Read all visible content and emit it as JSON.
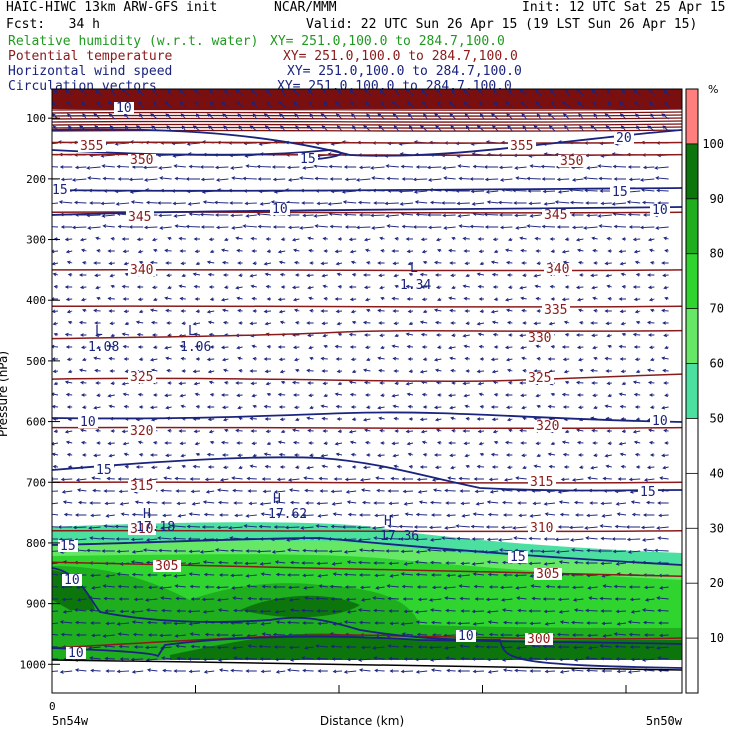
{
  "header": {
    "title": "HAIC-HIWC 13km ARW-GFS init",
    "center": "NCAR/MMM",
    "init": "Init: 12 UTC Sat 25 Apr 15",
    "fcst": "Fcst:   34 h",
    "valid": "Valid: 22 UTC Sun 26 Apr 15 (19 LST Sun 26 Apr 15)",
    "fields": [
      {
        "name": "Relative humidity (w.r.t. water)",
        "xy": "XY= 251.0,100.0 to 284.7,100.0",
        "color": "#1f9a1f"
      },
      {
        "name": "Potential temperature",
        "xy": "XY= 251.0,100.0 to 284.7,100.0",
        "color": "#8b1a1a"
      },
      {
        "name": "Horizontal wind speed",
        "xy": "XY= 251.0,100.0 to 284.7,100.0",
        "color": "#1a237e"
      },
      {
        "name": "Circulation vectors",
        "xy": "XY= 251.0,100.0 to 284.7,100.0",
        "color": "#1a237e"
      }
    ]
  },
  "chart_data": {
    "type": "heatmap",
    "xlabel": "Distance (km)",
    "ylabel": "Pressure (hPa)",
    "x_tick_zero": "0",
    "x_left_label": "5n54w",
    "x_right_label": "5n50w",
    "y_ticks": [
      100,
      200,
      300,
      400,
      500,
      600,
      700,
      800,
      900,
      1000
    ],
    "ylim": [
      1050,
      50
    ],
    "colorbar": {
      "unit": "%",
      "levels": [
        10,
        20,
        30,
        40,
        50,
        60,
        70,
        80,
        90,
        100
      ],
      "colors": {
        "lt50": "#ffffff",
        "50_60": "#4ce0a0",
        "60_70": "#66e866",
        "70_80": "#2fd42f",
        "80_90": "#1eae1e",
        "90_100": "#0c760c",
        "gt100": "#ff7f7f"
      }
    },
    "theta_contours": [
      {
        "value": 355,
        "p": 140
      },
      {
        "value": 350,
        "p": 160
      },
      {
        "value": 345,
        "p": 255
      },
      {
        "value": 340,
        "p": 350
      },
      {
        "value": 335,
        "p": 410
      },
      {
        "value": 330,
        "p": 460
      },
      {
        "value": 325,
        "p": 525
      },
      {
        "value": 320,
        "p": 610
      },
      {
        "value": 315,
        "p": 700
      },
      {
        "value": 310,
        "p": 780
      },
      {
        "value": 305,
        "p": 845
      },
      {
        "value": 300,
        "p": 960
      }
    ],
    "theta_labels": [
      "355",
      "350",
      "345",
      "340",
      "335",
      "330",
      "325",
      "320",
      "315",
      "310",
      "305",
      "300"
    ],
    "wind_labels": [
      "10",
      "15",
      "20",
      "15",
      "10",
      "10",
      "15",
      "15",
      "10",
      "10",
      "10"
    ],
    "extrema": [
      {
        "type": "L",
        "value": "1.34"
      },
      {
        "type": "L",
        "value": "1.08"
      },
      {
        "type": "L",
        "value": "1.06"
      },
      {
        "type": "H",
        "value": "17.18"
      },
      {
        "type": "H",
        "value": "17.62"
      },
      {
        "type": "H",
        "value": "17.36"
      }
    ]
  }
}
